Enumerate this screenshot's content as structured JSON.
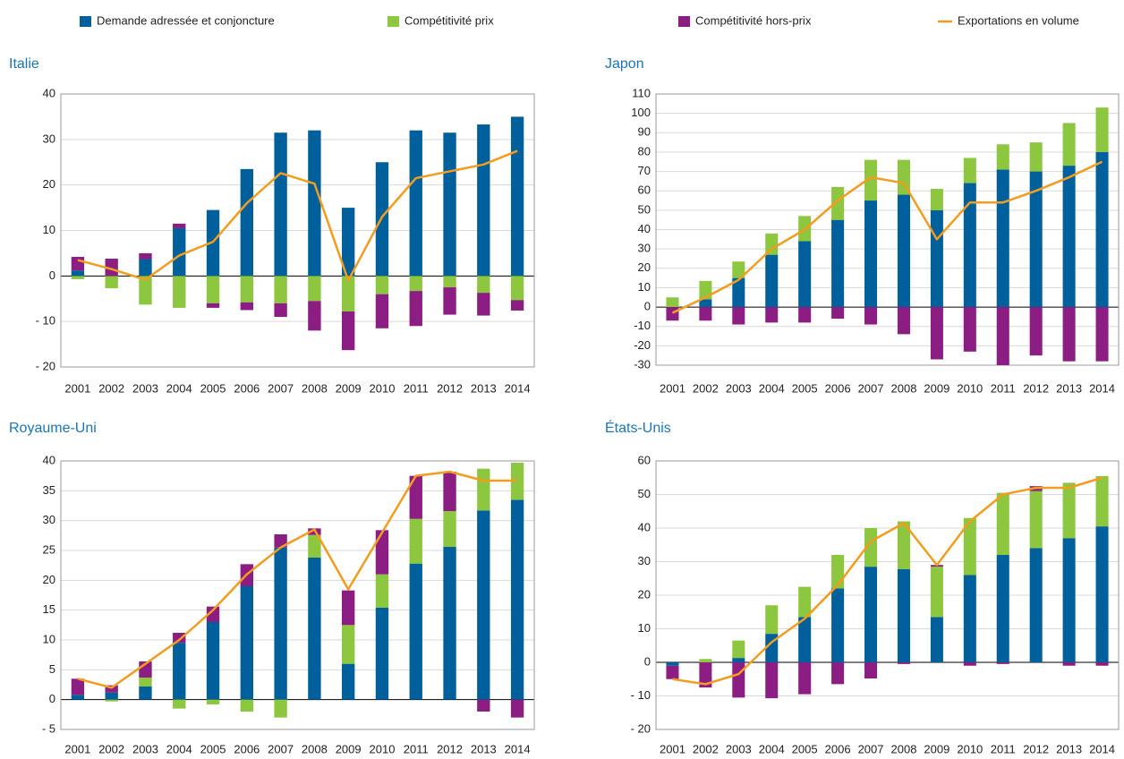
{
  "chart_data": [
    {
      "type": "bar",
      "stacked": true,
      "title": "Italie",
      "grid": true,
      "categories": [
        "2001",
        "2002",
        "2003",
        "2004",
        "2005",
        "2006",
        "2007",
        "2008",
        "2009",
        "2010",
        "2011",
        "2012",
        "2013",
        "2014"
      ],
      "ylim": [
        -20,
        40
      ],
      "yticks": [
        {
          "value": -20,
          "label": "- 20"
        },
        {
          "value": -10,
          "label": "- 10"
        },
        0,
        10,
        20,
        30,
        40
      ],
      "series": [
        {
          "name": "Demande adressée et conjoncture",
          "color": "#00609c",
          "values": [
            1.2,
            0,
            3.7,
            10.5,
            14.5,
            23.5,
            31.5,
            32,
            15,
            25,
            32,
            31.5,
            33.3,
            35
          ]
        },
        {
          "name": "Compétitivité prix",
          "color": "#8dc63f",
          "values": [
            -0.7,
            -2.7,
            -6.3,
            -7,
            -6,
            -5.8,
            -6,
            -5.5,
            -7.8,
            -4,
            -3.3,
            -2.5,
            -3.7,
            -5.3
          ]
        },
        {
          "name": "Compétitivité hors-prix",
          "color": "#8c1d82",
          "values": [
            3,
            3.8,
            1.3,
            1,
            -1,
            -1.7,
            -3,
            -6.5,
            -8.5,
            -7.5,
            -7.7,
            -6,
            -5,
            -2.3
          ]
        },
        {
          "name": "Exportations en volume",
          "color": "#f39c1e",
          "type": "line",
          "values": [
            3.5,
            1.5,
            -0.8,
            4.5,
            7.5,
            16,
            22.6,
            20.3,
            -1,
            13,
            21.5,
            23,
            24.5,
            27.5
          ]
        }
      ]
    },
    {
      "type": "bar",
      "stacked": true,
      "title": "Japon",
      "grid": true,
      "categories": [
        "2001",
        "2002",
        "2003",
        "2004",
        "2005",
        "2006",
        "2007",
        "2008",
        "2009",
        "2010",
        "2011",
        "2012",
        "2013",
        "2014"
      ],
      "ylim": [
        -30,
        110
      ],
      "yticks": [
        -30,
        -20,
        -10,
        0,
        10,
        20,
        30,
        40,
        50,
        60,
        70,
        80,
        90,
        100,
        110
      ],
      "series": [
        {
          "name": "Demande adressée et conjoncture",
          "color": "#00609c",
          "values": [
            0,
            4,
            15,
            27,
            34,
            45,
            55,
            58,
            50,
            64,
            71,
            70,
            73,
            80
          ]
        },
        {
          "name": "Compétitivité prix",
          "color": "#8dc63f",
          "values": [
            5,
            9.5,
            8.5,
            11,
            13,
            17,
            21,
            18,
            11,
            13,
            13,
            15,
            22,
            23
          ]
        },
        {
          "name": "Compétitivité hors-prix",
          "color": "#8c1d82",
          "values": [
            -7,
            -7,
            -9,
            -8,
            -8,
            -6,
            -9,
            -14,
            -27,
            -23,
            -30,
            -25,
            -28,
            -28
          ]
        },
        {
          "name": "Exportations en volume",
          "color": "#f39c1e",
          "type": "line",
          "values": [
            -3,
            5,
            14,
            30,
            40,
            55,
            67,
            64,
            35,
            54,
            54,
            60,
            67,
            75
          ]
        }
      ]
    },
    {
      "type": "bar",
      "stacked": true,
      "title": "Royaume-Uni",
      "grid": true,
      "categories": [
        "2001",
        "2002",
        "2003",
        "2004",
        "2005",
        "2006",
        "2007",
        "2008",
        "2009",
        "2010",
        "2011",
        "2012",
        "2013",
        "2014"
      ],
      "ylim": [
        -5,
        40
      ],
      "yticks": [
        {
          "value": -5,
          "label": "- 5"
        },
        0,
        5,
        10,
        15,
        20,
        25,
        30,
        35,
        40
      ],
      "series": [
        {
          "name": "Demande adressée et conjoncture",
          "color": "#00609c",
          "values": [
            0.8,
            1.2,
            2.2,
            9.5,
            13,
            19,
            25.5,
            23.8,
            6,
            15.4,
            22.8,
            25.6,
            31.7,
            33.5
          ]
        },
        {
          "name": "Compétitivité prix",
          "color": "#8dc63f",
          "values": [
            0,
            -0.3,
            1.5,
            -1.5,
            -0.8,
            -2,
            -3,
            3.8,
            6.5,
            5.6,
            7.5,
            6,
            7,
            6.2
          ]
        },
        {
          "name": "Compétitivité hors-prix",
          "color": "#8c1d82",
          "values": [
            2.7,
            1.2,
            2.7,
            1.7,
            2.6,
            3.7,
            2.2,
            1.1,
            5.8,
            7.4,
            7.2,
            6.6,
            -2,
            -3
          ]
        },
        {
          "name": "Exportations en volume",
          "color": "#f39c1e",
          "type": "line",
          "values": [
            3.5,
            2,
            6,
            10,
            15,
            21,
            25.5,
            28.5,
            18.5,
            28,
            37.5,
            38.2,
            36.7,
            36.7
          ]
        }
      ]
    },
    {
      "type": "bar",
      "stacked": true,
      "title": "États-Unis",
      "grid": true,
      "categories": [
        "2001",
        "2002",
        "2003",
        "2004",
        "2005",
        "2006",
        "2007",
        "2008",
        "2009",
        "2010",
        "2011",
        "2012",
        "2013",
        "2014"
      ],
      "ylim": [
        -20,
        60
      ],
      "yticks": [
        {
          "value": -20,
          "label": "- 20"
        },
        {
          "value": -10,
          "label": "- 10"
        },
        0,
        10,
        20,
        30,
        40,
        50,
        60
      ],
      "series": [
        {
          "name": "Demande adressée et conjoncture",
          "color": "#00609c",
          "values": [
            -1,
            0,
            1.3,
            8.5,
            13.5,
            22,
            28.5,
            27.8,
            13.5,
            26,
            32,
            34,
            37,
            40.5
          ]
        },
        {
          "name": "Compétitivité prix",
          "color": "#8dc63f",
          "values": [
            0,
            1,
            5.2,
            8.5,
            9,
            10,
            11.5,
            14.2,
            15,
            17,
            18.5,
            17,
            16.5,
            15
          ]
        },
        {
          "name": "Compétitivité hors-prix",
          "color": "#8c1d82",
          "values": [
            -4,
            -7.5,
            -10.5,
            -10.7,
            -9.5,
            -6.5,
            -4.8,
            -0.5,
            0.5,
            -1,
            -0.5,
            1.5,
            -1,
            -1
          ]
        },
        {
          "name": "Exportations en volume",
          "color": "#f39c1e",
          "type": "line",
          "values": [
            -5,
            -6.5,
            -3.5,
            6,
            13,
            23,
            36,
            41.5,
            29,
            42,
            50,
            52,
            52,
            55
          ]
        }
      ]
    }
  ]
}
